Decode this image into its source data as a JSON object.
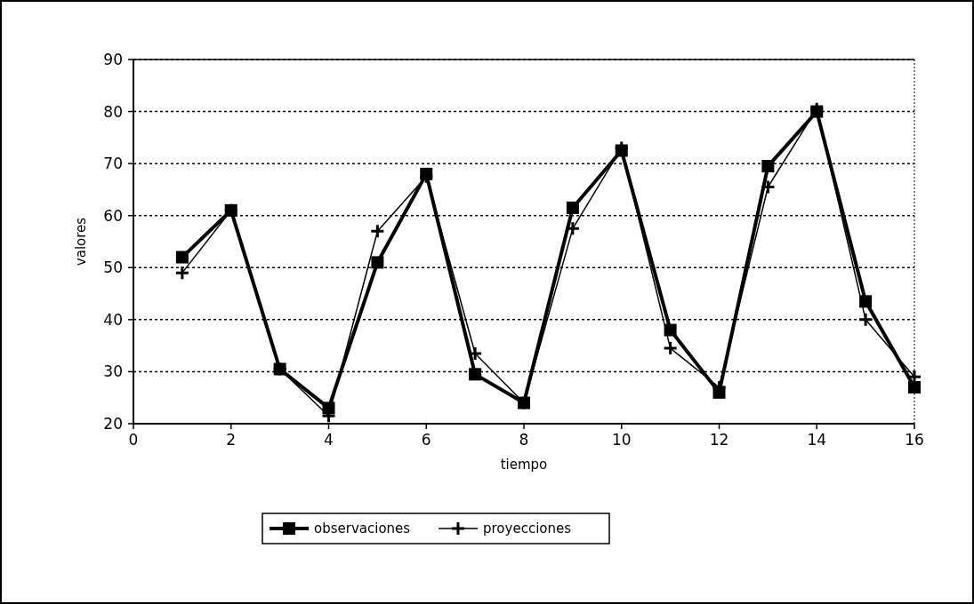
{
  "chart_data": {
    "type": "line",
    "xlabel": "tiempo",
    "ylabel": "valores",
    "x": [
      1,
      2,
      3,
      4,
      5,
      6,
      7,
      8,
      9,
      10,
      11,
      12,
      13,
      14,
      15,
      16
    ],
    "series": [
      {
        "name": "observaciones",
        "color": "#000000",
        "marker": "square",
        "values": [
          52,
          61,
          30.5,
          23,
          51,
          68,
          29.5,
          24,
          61.5,
          72.5,
          38,
          26,
          69.5,
          80,
          43.5,
          27
        ]
      },
      {
        "name": "proyecciones",
        "color": "#000000",
        "marker": "cross",
        "values": [
          49,
          61,
          30.5,
          21.5,
          57,
          67.5,
          33.5,
          24,
          57.5,
          73,
          34.5,
          27,
          65.5,
          80.5,
          40,
          29
        ]
      }
    ],
    "xlim": [
      0,
      16
    ],
    "xticks": [
      0,
      2,
      4,
      6,
      8,
      10,
      12,
      14,
      16
    ],
    "ylim": [
      20,
      90
    ],
    "yticks": [
      20,
      30,
      40,
      50,
      60,
      70,
      80,
      90
    ],
    "grid": "y",
    "legend": "bottom"
  }
}
